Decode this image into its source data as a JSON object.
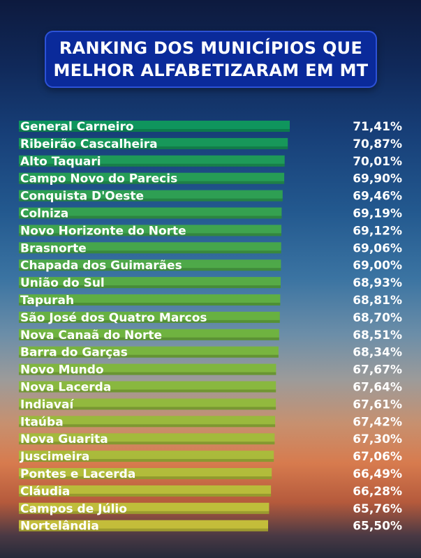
{
  "title_lines": [
    "RANKING DOS MUNICÍPIOS QUE",
    "MELHOR ALFABETIZARAM EM MT"
  ],
  "chart_data": {
    "type": "bar",
    "orientation": "horizontal",
    "categories": [
      "General Carneiro",
      "Ribeirão Cascalheira",
      "Alto Taquari",
      "Campo Novo do Parecis",
      "Conquista D'Oeste",
      "Colniza",
      "Novo Horizonte do Norte",
      "Brasnorte",
      "Chapada dos Guimarães",
      "União do Sul",
      "Tapurah",
      "São José dos Quatro Marcos",
      "Nova Canaã do Norte",
      "Barra do Garças",
      "Novo Mundo",
      "Nova Lacerda",
      "Indiavaí",
      "Itaúba",
      "Nova Guarita",
      "Juscimeira",
      "Pontes e Lacerda",
      "Cláudia",
      "Campos de Júlio",
      "Nortelândia"
    ],
    "values": [
      71.41,
      70.87,
      70.01,
      69.9,
      69.46,
      69.19,
      69.12,
      69.06,
      69.0,
      68.93,
      68.81,
      68.7,
      68.51,
      68.34,
      67.67,
      67.64,
      67.61,
      67.42,
      67.3,
      67.06,
      66.49,
      66.28,
      65.76,
      65.5
    ],
    "value_labels": [
      "71,41%",
      "70,87%",
      "70,01%",
      "69,90%",
      "69,46%",
      "69,19%",
      "69,12%",
      "69,06%",
      "69,00%",
      "68,93%",
      "68,81%",
      "68,70%",
      "68,51%",
      "68,34%",
      "67,67%",
      "67,64%",
      "67,61%",
      "67,42%",
      "67,30%",
      "67,06%",
      "66,49%",
      "66,28%",
      "65,76%",
      "65,50%"
    ],
    "unit": "%",
    "colors": {
      "top": "#0f9a5c",
      "middle": "#6cb43a",
      "bottom": "#c8c43a"
    },
    "grid": false,
    "legend": "none"
  }
}
